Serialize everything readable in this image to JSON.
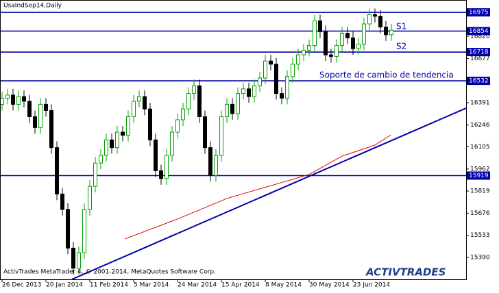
{
  "chart_data": {
    "type": "candlestick",
    "title": "UsaIndSep14,Daily",
    "categories": [
      "26 Dec 2013",
      null,
      null,
      null,
      null,
      null,
      null,
      null,
      "20 Jan 2014",
      null,
      null,
      null,
      null,
      null,
      null,
      null,
      "11 Feb 2014",
      null,
      null,
      null,
      null,
      null,
      null,
      null,
      "5 Mar 2014",
      null,
      null,
      null,
      null,
      null,
      null,
      null,
      "24 Mar 2014",
      null,
      null,
      null,
      null,
      null,
      null,
      null,
      "15 Apr 2014",
      null,
      null,
      null,
      null,
      null,
      null,
      null,
      "8 May 2014",
      null,
      null,
      null,
      null,
      null,
      null,
      null,
      "30 May 2014",
      null,
      null,
      null,
      null,
      null,
      null,
      null,
      "23 Jun 2014",
      null,
      null,
      null,
      null,
      null,
      null,
      null
    ],
    "open": [
      16380,
      16420,
      16440,
      16380,
      16430,
      16400,
      16300,
      16230,
      16380,
      16340,
      16100,
      15800,
      15700,
      15450,
      15320,
      15420,
      15700,
      15850,
      16000,
      16050,
      16150,
      16100,
      16200,
      16180,
      16300,
      16400,
      16430,
      16350,
      16150,
      15950,
      15900,
      16050,
      16200,
      16280,
      16350,
      16450,
      16500,
      16300,
      16100,
      15920,
      16050,
      16300,
      16380,
      16320,
      16450,
      16480,
      16430,
      16500,
      16550,
      16660,
      16640,
      16450,
      16420,
      16560,
      16640,
      16700,
      16730,
      16760,
      16920,
      16850,
      16700,
      16690,
      16760,
      16840,
      16810,
      16740,
      16770,
      16900,
      16960,
      16950,
      16880,
      16830
    ],
    "high": [
      16460,
      16480,
      16480,
      16470,
      16470,
      16440,
      16340,
      16420,
      16420,
      16380,
      16140,
      15840,
      15740,
      15490,
      15460,
      15740,
      15890,
      16040,
      16090,
      16190,
      16190,
      16240,
      16240,
      16340,
      16440,
      16470,
      16470,
      16390,
      16190,
      15990,
      16090,
      16240,
      16320,
      16390,
      16490,
      16540,
      16540,
      16340,
      16140,
      16090,
      16340,
      16420,
      16420,
      16490,
      16520,
      16520,
      16540,
      16590,
      16700,
      16700,
      16680,
      16490,
      16600,
      16680,
      16740,
      16770,
      16800,
      16960,
      16960,
      16890,
      16740,
      16800,
      16880,
      16880,
      16850,
      16810,
      16940,
      17000,
      17000,
      16990,
      16920,
      16900
    ],
    "low": [
      16340,
      16380,
      16340,
      16340,
      16360,
      16260,
      16190,
      16190,
      16300,
      16060,
      15760,
      15660,
      15410,
      15280,
      15280,
      15380,
      15660,
      15810,
      15960,
      16010,
      16060,
      16060,
      16140,
      16140,
      16260,
      16360,
      16310,
      16110,
      15910,
      15860,
      15860,
      16010,
      16160,
      16240,
      16310,
      16410,
      16260,
      16060,
      15880,
      15880,
      16010,
      16260,
      16280,
      16280,
      16410,
      16390,
      16390,
      16460,
      16510,
      16600,
      16410,
      16380,
      16380,
      16520,
      16600,
      16660,
      16690,
      16720,
      16810,
      16660,
      16650,
      16650,
      16720,
      16770,
      16700,
      16700,
      16730,
      16860,
      16910,
      16840,
      16790,
      16790
    ],
    "close": [
      16420,
      16440,
      16380,
      16430,
      16400,
      16300,
      16230,
      16380,
      16340,
      16100,
      15800,
      15700,
      15450,
      15320,
      15420,
      15700,
      15850,
      16000,
      16050,
      16150,
      16100,
      16200,
      16180,
      16300,
      16400,
      16430,
      16350,
      16150,
      15950,
      15900,
      16050,
      16200,
      16280,
      16350,
      16450,
      16500,
      16300,
      16100,
      15920,
      16050,
      16300,
      16380,
      16320,
      16450,
      16480,
      16430,
      16500,
      16550,
      16660,
      16640,
      16450,
      16420,
      16560,
      16640,
      16700,
      16730,
      16760,
      16920,
      16850,
      16700,
      16690,
      16760,
      16840,
      16810,
      16740,
      16770,
      16900,
      16960,
      16950,
      16880,
      16830,
      16860
    ],
    "up_color": "#00a000",
    "down_color": "#000000",
    "ylim": [
      15248,
      17055
    ],
    "yticks": [
      15390,
      15533,
      15676,
      15819,
      15962,
      16105,
      16246,
      16391,
      16677,
      16820
    ],
    "levels": [
      16975,
      16854,
      16718,
      16532,
      15919
    ],
    "level_color": "#0000aa",
    "trendline": {
      "x": [
        12.75,
        84.6
      ],
      "values": [
        15248,
        16355
      ],
      "color": "#0000aa"
    },
    "moving_average": {
      "x": [
        22.4,
        32,
        41,
        49.5,
        56,
        62,
        68,
        70.9
      ],
      "values": [
        15509,
        15638,
        15771,
        15859,
        15926,
        16045,
        16116,
        16182
      ],
      "color": "#dd0000"
    },
    "annotations": [
      "S1",
      "S2",
      "Soporte de cambio de tendencia"
    ],
    "footer": "ActivTrades MetaTrader 4, © 2001-2014, MetaQuotes Software Corp.",
    "logo": "ACTIVTRADES"
  }
}
